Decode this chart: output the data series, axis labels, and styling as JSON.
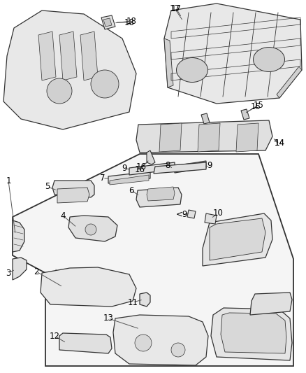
{
  "bg_color": "#ffffff",
  "line_color": "#333333",
  "label_color": "#000000",
  "label_fontsize": 8.5,
  "fig_width": 4.38,
  "fig_height": 5.33,
  "dpi": 100,
  "lw": 0.9,
  "fill_color": "#f0f0f0",
  "fill_color2": "#e0e0e0",
  "fill_dark": "#c8c8c8"
}
